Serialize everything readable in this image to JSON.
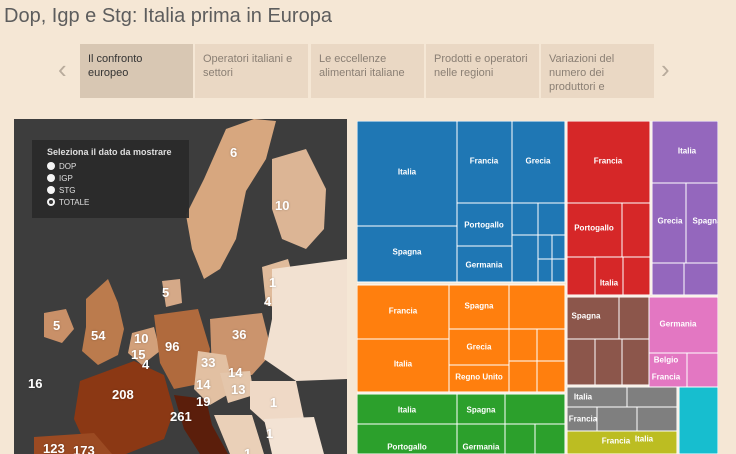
{
  "page": {
    "title": "Dop, Igp e Stg: Italia prima in Europa"
  },
  "tabs": {
    "prev_icon": "chevron-left-icon",
    "next_icon": "chevron-right-icon",
    "items": [
      {
        "label": "Il confronto europeo",
        "active": true
      },
      {
        "label": "Operatori italiani e settori",
        "active": false
      },
      {
        "label": "Le eccellenze alimentari italiane",
        "active": false
      },
      {
        "label": "Prodotti e operatori nelle regioni",
        "active": false
      },
      {
        "label": "Variazioni del numero dei produttori e",
        "active": false
      }
    ]
  },
  "selector": {
    "title": "Seleziona il dato da mostrare",
    "options": [
      "DOP",
      "IGP",
      "STG",
      "TOTALE"
    ],
    "selected": "TOTALE"
  },
  "map": {
    "labels": [
      "6",
      "10",
      "1",
      "4",
      "5",
      "36",
      "5",
      "54",
      "10",
      "96",
      "15",
      "4",
      "33",
      "14",
      "14",
      "13",
      "16",
      "208",
      "1",
      "19",
      "261",
      "1",
      "123",
      "173",
      "1"
    ]
  },
  "treemap": {
    "labels": [
      "Italia",
      "Francia",
      "Grecia",
      "Spagna",
      "Portogallo",
      "Germania",
      "Francia",
      "Portogallo",
      "Italia",
      "Italia",
      "Grecia",
      "Spagna",
      "Francia",
      "Spagna",
      "Grecia",
      "Italia",
      "Regno Unito",
      "Spagna",
      "Germania",
      "Belgio",
      "Francia",
      "Italia",
      "Spagna",
      "Portogallo",
      "Germania",
      "Italia",
      "Francia",
      "Francia",
      "Italia"
    ],
    "colors": {
      "blue": "#1f77b4",
      "red": "#d62728",
      "purple": "#9467bd",
      "orange": "#ff7f0e",
      "brown": "#8c564b",
      "pink": "#e377c2",
      "green": "#2ca02c",
      "gray": "#7f7f7f",
      "olive": "#bcbd22",
      "cyan": "#17becf"
    }
  }
}
